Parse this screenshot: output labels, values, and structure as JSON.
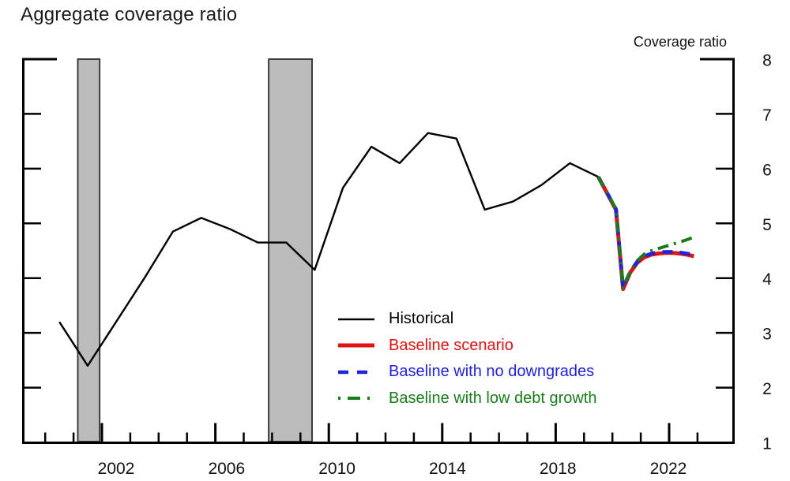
{
  "chart_data": {
    "type": "line",
    "title": "Aggregate coverage ratio",
    "ylabel": "Coverage ratio",
    "xlabel": "",
    "ylim": [
      1,
      8
    ],
    "y_ticks": [
      1,
      2,
      3,
      4,
      5,
      6,
      7,
      8
    ],
    "xlim": [
      1999.2,
      2023.8
    ],
    "x_major_tick_years": [
      2002,
      2006,
      2010,
      2014,
      2018,
      2022
    ],
    "x_minor_tick_year_range": [
      2000,
      2023
    ],
    "grid": false,
    "legend_position": "inside-lower-center",
    "recession_bands": {
      "fill": "#bcbcbc",
      "border": "#3d3d3d",
      "spans": [
        [
          2001.15,
          2001.92
        ],
        [
          2007.88,
          2009.41
        ]
      ]
    },
    "series": [
      {
        "name": "Historical",
        "color": "#000000",
        "style": "solid",
        "width": 2.4,
        "dash": null,
        "plotted_at": "mid-year",
        "points": [
          [
            2000,
            3.2
          ],
          [
            2001,
            2.4
          ],
          [
            2002,
            3.2
          ],
          [
            2003,
            4.0
          ],
          [
            2004,
            4.85
          ],
          [
            2005,
            5.1
          ],
          [
            2006,
            4.9
          ],
          [
            2007,
            4.65
          ],
          [
            2008,
            4.65
          ],
          [
            2009,
            4.15
          ],
          [
            2010,
            5.65
          ],
          [
            2011,
            6.4
          ],
          [
            2012,
            6.1
          ],
          [
            2013,
            6.65
          ],
          [
            2014,
            6.55
          ],
          [
            2015,
            5.25
          ],
          [
            2016,
            5.4
          ],
          [
            2017,
            5.7
          ],
          [
            2018,
            6.1
          ],
          [
            2019,
            5.85
          ]
        ]
      },
      {
        "name": "Baseline scenario",
        "color": "#e01212",
        "style": "solid",
        "width": 5,
        "dash": null,
        "plotted_at": "exact",
        "points": [
          [
            2019.5,
            5.85
          ],
          [
            2020.125,
            5.25
          ],
          [
            2020.375,
            3.8
          ],
          [
            2020.625,
            4.1
          ],
          [
            2020.875,
            4.28
          ],
          [
            2021.125,
            4.38
          ],
          [
            2021.375,
            4.43
          ],
          [
            2021.625,
            4.45
          ],
          [
            2021.875,
            4.46
          ],
          [
            2022.125,
            4.46
          ],
          [
            2022.375,
            4.45
          ],
          [
            2022.625,
            4.43
          ],
          [
            2022.875,
            4.4
          ]
        ]
      },
      {
        "name": "Baseline with no downgrades",
        "color": "#2222dd",
        "style": "dashed",
        "width": 4.6,
        "dash": [
          13,
          9
        ],
        "plotted_at": "exact",
        "points": [
          [
            2019.5,
            5.85
          ],
          [
            2020.125,
            5.26
          ],
          [
            2020.375,
            3.82
          ],
          [
            2020.625,
            4.12
          ],
          [
            2020.875,
            4.3
          ],
          [
            2021.125,
            4.4
          ],
          [
            2021.375,
            4.45
          ],
          [
            2021.625,
            4.47
          ],
          [
            2021.875,
            4.48
          ],
          [
            2022.125,
            4.48
          ],
          [
            2022.375,
            4.47
          ],
          [
            2022.625,
            4.45
          ],
          [
            2022.875,
            4.43
          ]
        ]
      },
      {
        "name": "Baseline with low debt growth",
        "color": "#1a7c1a",
        "style": "dash-dot",
        "width": 4,
        "dash": [
          14,
          7,
          3,
          7
        ],
        "plotted_at": "exact",
        "points": [
          [
            2019.5,
            5.85
          ],
          [
            2020.125,
            5.26
          ],
          [
            2020.375,
            3.82
          ],
          [
            2020.625,
            4.12
          ],
          [
            2020.875,
            4.32
          ],
          [
            2021.125,
            4.44
          ],
          [
            2021.375,
            4.5
          ],
          [
            2021.625,
            4.54
          ],
          [
            2021.875,
            4.58
          ],
          [
            2022.125,
            4.62
          ],
          [
            2022.375,
            4.66
          ],
          [
            2022.625,
            4.7
          ],
          [
            2022.875,
            4.75
          ]
        ]
      }
    ]
  }
}
